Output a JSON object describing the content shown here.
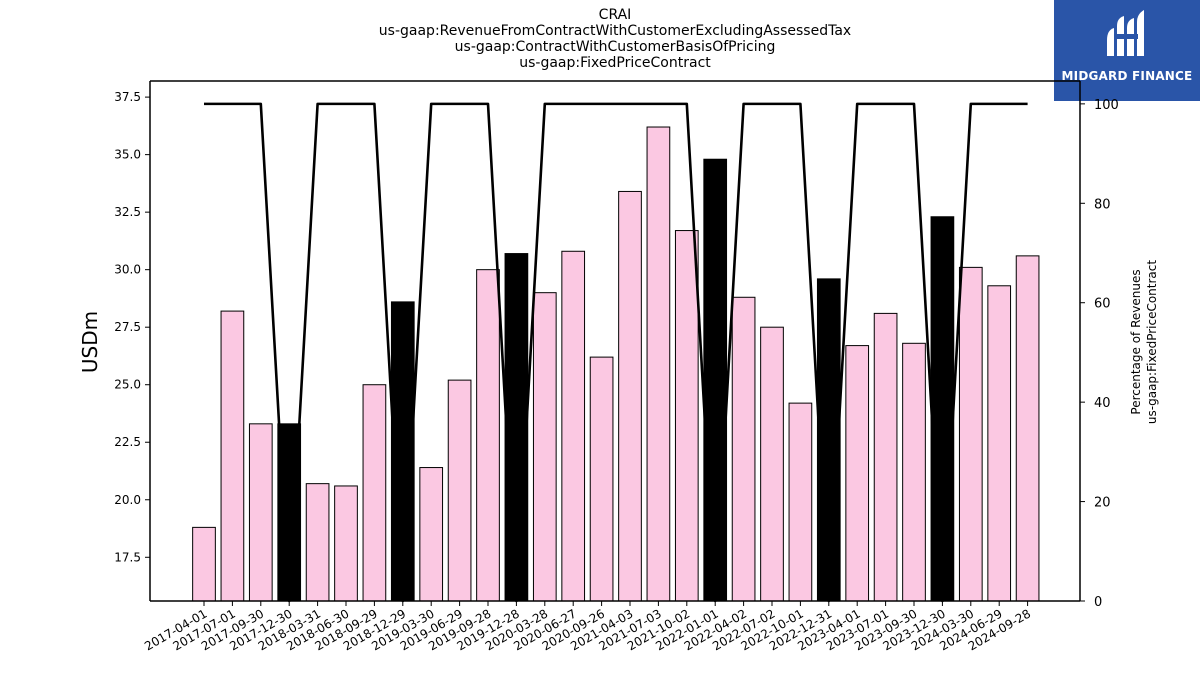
{
  "title_lines": [
    "CRAI",
    "us-gaap:RevenueFromContractWithCustomerExcludingAssessedTax",
    "us-gaap:ContractWithCustomerBasisOfPricing",
    "us-gaap:FixedPriceContract"
  ],
  "logo": {
    "text": "MIDGARD FINANCE",
    "background": "#2a55a8"
  },
  "chart_data": {
    "type": "bar",
    "ylabel": "USDm",
    "y2label_lines": [
      "Percentage of Revenues",
      "us-gaap:FixedPriceContract"
    ],
    "ylim": [
      15.6,
      38.2
    ],
    "y2lim": [
      0,
      104.6
    ],
    "yticks": [
      "17.5",
      "20.0",
      "22.5",
      "25.0",
      "27.5",
      "30.0",
      "32.5",
      "35.0",
      "37.5"
    ],
    "y2ticks": [
      "0",
      "20",
      "40",
      "60",
      "80",
      "100"
    ],
    "categories": [
      "2017-04-01",
      "2017-07-01",
      "2017-09-30",
      "2017-12-30",
      "2018-03-31",
      "2018-06-30",
      "2018-09-29",
      "2018-12-29",
      "2019-03-30",
      "2019-06-29",
      "2019-09-28",
      "2019-12-28",
      "2020-03-28",
      "2020-06-27",
      "2020-09-26",
      "2021-04-03",
      "2021-07-03",
      "2021-10-02",
      "2022-01-01",
      "2022-04-02",
      "2022-07-02",
      "2022-10-01",
      "2022-12-31",
      "2023-04-01",
      "2023-07-01",
      "2023-09-30",
      "2023-12-30",
      "2024-03-30",
      "2024-06-29",
      "2024-09-28"
    ],
    "series": [
      {
        "type": "bar",
        "values": [
          18.8,
          28.2,
          23.3,
          23.3,
          20.7,
          20.6,
          25.0,
          28.6,
          21.4,
          25.2,
          30.0,
          30.7,
          29.0,
          30.8,
          26.2,
          33.4,
          36.2,
          31.7,
          34.8,
          28.8,
          27.5,
          24.2,
          29.6,
          26.7,
          28.1,
          26.8,
          32.3,
          30.1,
          29.3,
          30.6
        ],
        "colors": [
          "#fbc8e2",
          "#fbc8e2",
          "#fbc8e2",
          "#000000",
          "#fbc8e2",
          "#fbc8e2",
          "#fbc8e2",
          "#000000",
          "#fbc8e2",
          "#fbc8e2",
          "#fbc8e2",
          "#000000",
          "#fbc8e2",
          "#fbc8e2",
          "#fbc8e2",
          "#fbc8e2",
          "#fbc8e2",
          "#fbc8e2",
          "#000000",
          "#fbc8e2",
          "#fbc8e2",
          "#fbc8e2",
          "#000000",
          "#fbc8e2",
          "#fbc8e2",
          "#fbc8e2",
          "#000000",
          "#fbc8e2",
          "#fbc8e2",
          "#fbc8e2"
        ]
      },
      {
        "type": "line",
        "axis": "right",
        "values": [
          100,
          100,
          100,
          0,
          100,
          100,
          100,
          0,
          100,
          100,
          100,
          0,
          100,
          100,
          100,
          100,
          100,
          100,
          0,
          100,
          100,
          100,
          0,
          100,
          100,
          100,
          0,
          100,
          100,
          100
        ],
        "color": "#000000"
      }
    ],
    "grid": false
  }
}
